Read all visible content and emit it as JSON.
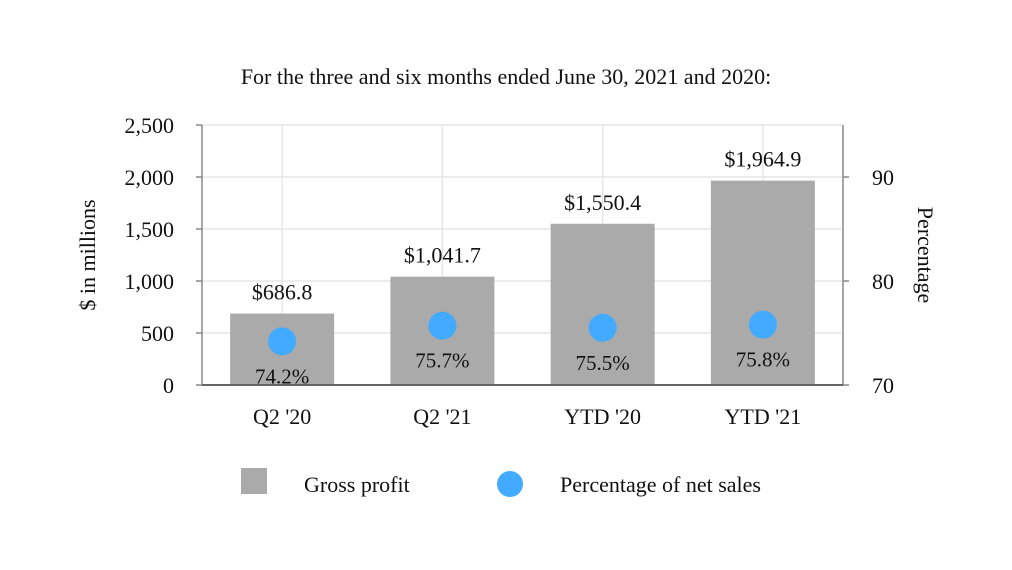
{
  "chart_data": {
    "type": "bar",
    "title": "For the three and six months ended June 30, 2021 and 2020:",
    "categories": [
      "Q2 '20",
      "Q2 '21",
      "YTD '20",
      "YTD '21"
    ],
    "series": [
      {
        "name": "Gross profit",
        "type": "bar",
        "axis": "left",
        "color": "#aaaaaa",
        "values": [
          686.8,
          1041.7,
          1550.4,
          1964.9
        ],
        "labels": [
          "$686.8",
          "$1,041.7",
          "$1,550.4",
          "$1,964.9"
        ]
      },
      {
        "name": "Percentage of net sales",
        "type": "scatter",
        "axis": "right",
        "color": "#42aaff",
        "values": [
          74.2,
          75.7,
          75.5,
          75.8
        ],
        "labels": [
          "74.2%",
          "75.7%",
          "75.5%",
          "75.8%"
        ]
      }
    ],
    "ylabel": "$ in millions",
    "y2label": "Percentage",
    "ylim": [
      0,
      2500
    ],
    "y2lim": [
      70,
      95
    ],
    "yticks": [
      0,
      500,
      1000,
      1500,
      2000,
      2500
    ],
    "ytick_labels": [
      "0",
      "500",
      "1,000",
      "1,500",
      "2,000",
      "2,500"
    ],
    "y2ticks": [
      70,
      80,
      90
    ],
    "y2tick_labels": [
      "70",
      "80",
      "90"
    ],
    "grid": true,
    "legend": "bottom"
  }
}
